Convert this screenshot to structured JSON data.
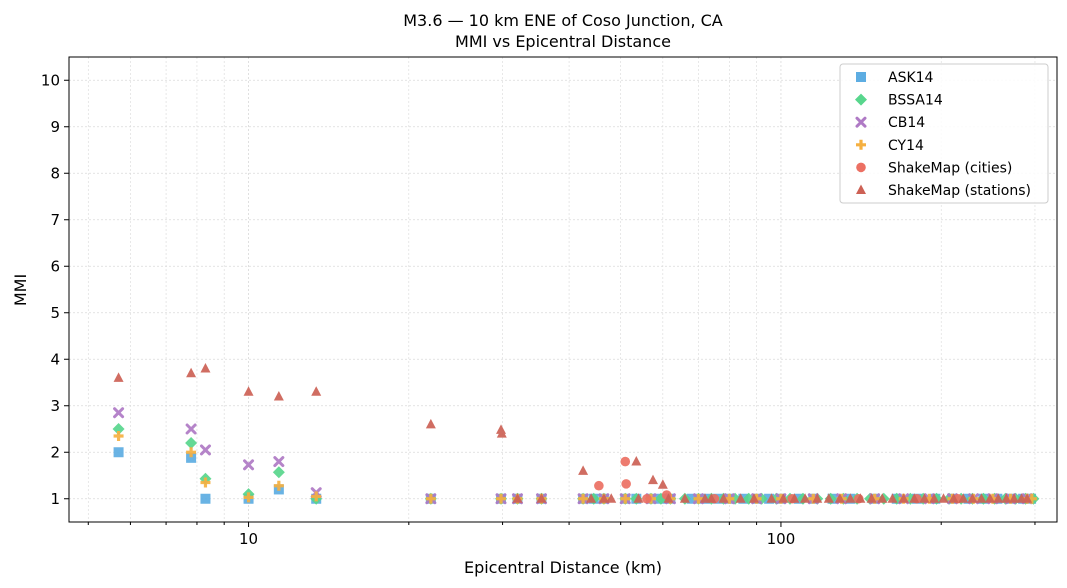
{
  "chart_data": {
    "type": "scatter",
    "title": "M3.6 — 10 km ENE of Coso Junction, CA",
    "subtitle": "MMI vs Epicentral Distance",
    "xlabel": "Epicentral Distance (km)",
    "ylabel": "MMI",
    "xscale": "log",
    "xlim": [
      4.6,
      330
    ],
    "ylim": [
      0.5,
      10.5
    ],
    "x_ticks": [
      10,
      100
    ],
    "x_tick_labels": [
      "10",
      "100"
    ],
    "y_ticks": [
      1,
      2,
      3,
      4,
      5,
      6,
      7,
      8,
      9,
      10
    ],
    "y_tick_labels": [
      "1",
      "2",
      "3",
      "4",
      "5",
      "6",
      "7",
      "8",
      "9",
      "10"
    ],
    "grid": true,
    "legend_position": "top-right",
    "series": [
      {
        "name": "ASK14",
        "marker": "square",
        "color": "#5DADE2",
        "points": [
          [
            5.7,
            2.0
          ],
          [
            7.8,
            1.88
          ],
          [
            8.3,
            1.0
          ],
          [
            10.0,
            1.0
          ],
          [
            11.4,
            1.2
          ],
          [
            13.4,
            1.0
          ],
          [
            22.0,
            1.0
          ],
          [
            29.8,
            1.0
          ],
          [
            32.0,
            1.0
          ],
          [
            35.5,
            1.0
          ],
          [
            42.5,
            1.0
          ],
          [
            44.5,
            1.0
          ],
          [
            46.5,
            1.0
          ],
          [
            51.0,
            1.0
          ],
          [
            53.5,
            1.0
          ],
          [
            57.0,
            1.0
          ],
          [
            59.5,
            1.0
          ],
          [
            62.0,
            1.0
          ],
          [
            68.0,
            1.0
          ],
          [
            72.0,
            1.0
          ],
          [
            76.0,
            1.0
          ],
          [
            80.0,
            1.0
          ],
          [
            85.0,
            1.0
          ],
          [
            90.0,
            1.0
          ],
          [
            95.0,
            1.0
          ],
          [
            100.0,
            1.0
          ],
          [
            108.0,
            1.0
          ],
          [
            115.0,
            1.0
          ],
          [
            125.0,
            1.0
          ],
          [
            135.0,
            1.0
          ],
          [
            150.0,
            1.0
          ],
          [
            165.0,
            1.0
          ],
          [
            180.0,
            1.0
          ],
          [
            195.0,
            1.0
          ],
          [
            210.0,
            1.0
          ],
          [
            225.0,
            1.0
          ],
          [
            240.0,
            1.0
          ],
          [
            255.0,
            1.0
          ],
          [
            270.0,
            1.0
          ],
          [
            285.0,
            1.0
          ],
          [
            295.0,
            1.0
          ]
        ]
      },
      {
        "name": "BSSA14",
        "marker": "diamond",
        "color": "#58D68D",
        "points": [
          [
            5.7,
            2.5
          ],
          [
            7.8,
            2.2
          ],
          [
            8.3,
            1.43
          ],
          [
            10.0,
            1.1
          ],
          [
            11.4,
            1.57
          ],
          [
            13.4,
            1.0
          ],
          [
            22.0,
            1.0
          ],
          [
            29.8,
            1.0
          ],
          [
            32.0,
            1.0
          ],
          [
            35.5,
            1.0
          ],
          [
            42.5,
            1.0
          ],
          [
            44.5,
            1.0
          ],
          [
            46.5,
            1.0
          ],
          [
            51.0,
            1.0
          ],
          [
            53.5,
            1.0
          ],
          [
            57.0,
            1.0
          ],
          [
            59.5,
            1.0
          ],
          [
            62.0,
            1.0
          ],
          [
            66.0,
            1.0
          ],
          [
            70.0,
            1.0
          ],
          [
            74.0,
            1.0
          ],
          [
            78.0,
            1.0
          ],
          [
            82.0,
            1.0
          ],
          [
            87.0,
            1.0
          ],
          [
            92.0,
            1.0
          ],
          [
            98.0,
            1.0
          ],
          [
            104.0,
            1.0
          ],
          [
            110.0,
            1.0
          ],
          [
            117.0,
            1.0
          ],
          [
            124.0,
            1.0
          ],
          [
            131.0,
            1.0
          ],
          [
            139.0,
            1.0
          ],
          [
            147.0,
            1.0
          ],
          [
            156.0,
            1.0
          ],
          [
            165.0,
            1.0
          ],
          [
            175.0,
            1.0
          ],
          [
            185.0,
            1.0
          ],
          [
            196.0,
            1.0
          ],
          [
            207.0,
            1.0
          ],
          [
            218.0,
            1.0
          ],
          [
            229.0,
            1.0
          ],
          [
            240.0,
            1.0
          ],
          [
            252.0,
            1.0
          ],
          [
            264.0,
            1.0
          ],
          [
            276.0,
            1.0
          ],
          [
            288.0,
            1.0
          ],
          [
            298.0,
            1.0
          ]
        ]
      },
      {
        "name": "CB14",
        "marker": "x",
        "color": "#AF7AC5",
        "points": [
          [
            5.7,
            2.85
          ],
          [
            7.8,
            2.5
          ],
          [
            8.3,
            2.05
          ],
          [
            10.0,
            1.73
          ],
          [
            11.4,
            1.8
          ],
          [
            13.4,
            1.13
          ],
          [
            22.0,
            1.0
          ],
          [
            29.8,
            1.0
          ],
          [
            32.0,
            1.0
          ],
          [
            35.5,
            1.0
          ],
          [
            42.5,
            1.0
          ],
          [
            46.5,
            1.0
          ],
          [
            51.0,
            1.0
          ],
          [
            57.0,
            1.0
          ],
          [
            62.0,
            1.0
          ],
          [
            70.0,
            1.0
          ],
          [
            80.0,
            1.0
          ],
          [
            90.0,
            1.0
          ],
          [
            100.0,
            1.0
          ],
          [
            115.0,
            1.0
          ],
          [
            130.0,
            1.0
          ],
          [
            150.0,
            1.0
          ],
          [
            170.0,
            1.0
          ],
          [
            190.0,
            1.0
          ],
          [
            210.0,
            1.0
          ],
          [
            230.0,
            1.0
          ],
          [
            250.0,
            1.0
          ],
          [
            270.0,
            1.0
          ],
          [
            290.0,
            1.0
          ]
        ]
      },
      {
        "name": "CY14",
        "marker": "plus",
        "color": "#F5B041",
        "points": [
          [
            5.7,
            2.35
          ],
          [
            7.8,
            2.0
          ],
          [
            8.3,
            1.35
          ],
          [
            10.0,
            1.03
          ],
          [
            11.4,
            1.28
          ],
          [
            13.4,
            1.05
          ],
          [
            22.0,
            1.0
          ],
          [
            29.8,
            1.0
          ],
          [
            32.0,
            1.0
          ],
          [
            35.5,
            1.0
          ],
          [
            42.5,
            1.0
          ],
          [
            46.5,
            1.0
          ],
          [
            51.0,
            1.0
          ],
          [
            57.0,
            1.0
          ],
          [
            62.0,
            1.0
          ],
          [
            70.0,
            1.0
          ],
          [
            80.0,
            1.0
          ],
          [
            90.0,
            1.0
          ],
          [
            100.0,
            1.0
          ],
          [
            115.0,
            1.0
          ],
          [
            130.0,
            1.0
          ],
          [
            150.0,
            1.0
          ],
          [
            170.0,
            1.0
          ],
          [
            190.0,
            1.0
          ],
          [
            210.0,
            1.0
          ],
          [
            230.0,
            1.0
          ],
          [
            250.0,
            1.0
          ],
          [
            270.0,
            1.0
          ],
          [
            290.0,
            1.0
          ],
          [
            296.0,
            1.0
          ]
        ]
      },
      {
        "name": "ShakeMap (cities)",
        "marker": "circle",
        "color": "#EC7063",
        "points": [
          [
            45.5,
            1.28
          ],
          [
            51.0,
            1.8
          ],
          [
            51.2,
            1.32
          ],
          [
            56.0,
            1.0
          ],
          [
            61.0,
            1.08
          ],
          [
            75.0,
            1.0
          ],
          [
            105.0,
            1.0
          ],
          [
            140.0,
            1.0
          ],
          [
            180.0,
            1.0
          ],
          [
            215.0,
            1.0
          ]
        ]
      },
      {
        "name": "ShakeMap (stations)",
        "marker": "triangle",
        "color": "#CD6155",
        "points": [
          [
            5.7,
            3.6
          ],
          [
            7.8,
            3.7
          ],
          [
            8.3,
            3.8
          ],
          [
            10.0,
            3.3
          ],
          [
            11.4,
            3.2
          ],
          [
            13.4,
            3.3
          ],
          [
            22.0,
            2.6
          ],
          [
            29.8,
            2.48
          ],
          [
            29.9,
            2.4
          ],
          [
            42.5,
            1.6
          ],
          [
            32.0,
            1.0
          ],
          [
            35.5,
            1.0
          ],
          [
            44.0,
            1.0
          ],
          [
            46.5,
            1.0
          ],
          [
            48.0,
            1.0
          ],
          [
            53.5,
            1.8
          ],
          [
            57.5,
            1.4
          ],
          [
            60.0,
            1.3
          ],
          [
            54.0,
            1.0
          ],
          [
            61.5,
            1.0
          ],
          [
            66.0,
            1.0
          ],
          [
            72.0,
            1.0
          ],
          [
            74.0,
            1.0
          ],
          [
            78.0,
            1.0
          ],
          [
            84.0,
            1.0
          ],
          [
            89.0,
            1.0
          ],
          [
            96.0,
            1.0
          ],
          [
            101.0,
            1.0
          ],
          [
            106.0,
            1.0
          ],
          [
            111.0,
            1.0
          ],
          [
            117.0,
            1.0
          ],
          [
            123.0,
            1.0
          ],
          [
            129.0,
            1.0
          ],
          [
            135.0,
            1.0
          ],
          [
            141.0,
            1.0
          ],
          [
            148.0,
            1.0
          ],
          [
            155.0,
            1.0
          ],
          [
            162.0,
            1.0
          ],
          [
            170.0,
            1.0
          ],
          [
            178.0,
            1.0
          ],
          [
            186.0,
            1.0
          ],
          [
            194.0,
            1.0
          ],
          [
            202.0,
            1.0
          ],
          [
            211.0,
            1.0
          ],
          [
            220.0,
            1.0
          ],
          [
            229.0,
            1.0
          ],
          [
            238.0,
            1.0
          ],
          [
            247.0,
            1.0
          ],
          [
            256.0,
            1.0
          ],
          [
            265.0,
            1.0
          ],
          [
            274.0,
            1.0
          ],
          [
            283.0,
            1.0
          ],
          [
            290.0,
            1.0
          ]
        ]
      }
    ]
  }
}
